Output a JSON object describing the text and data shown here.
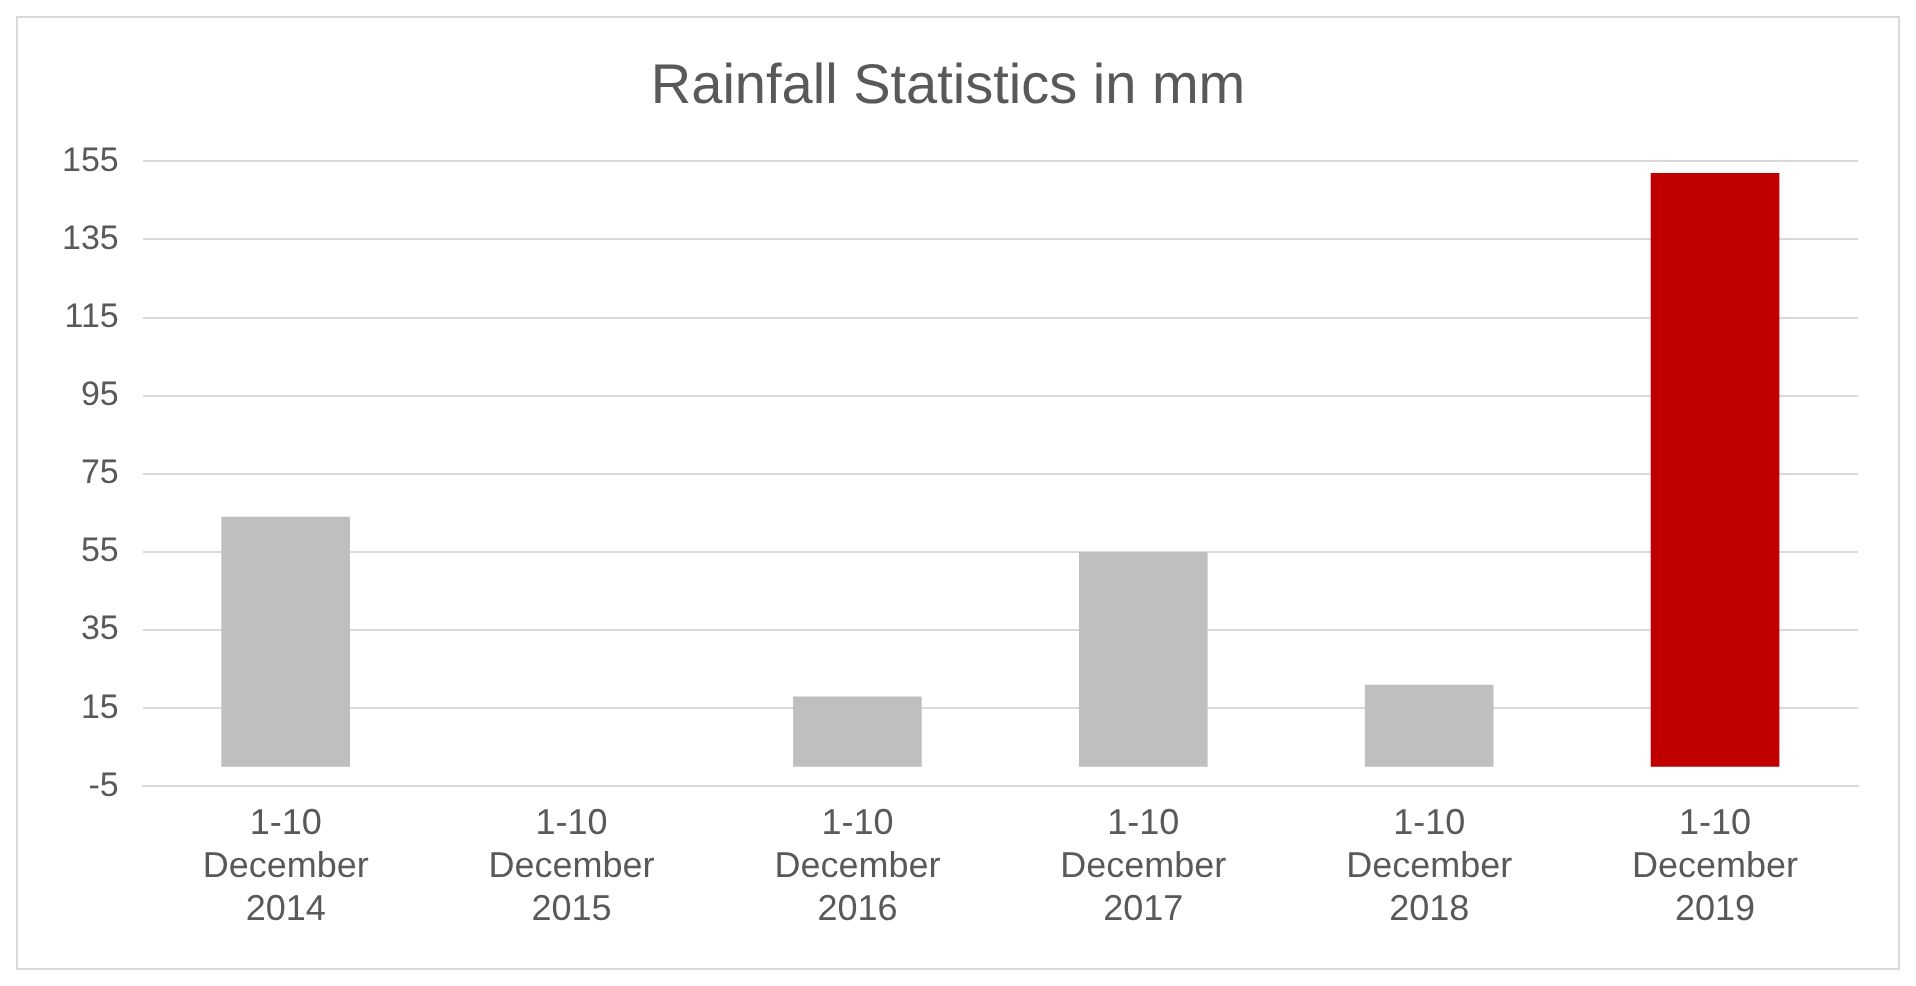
{
  "chart_data": {
    "type": "bar",
    "title": "Rainfall Statistics in mm",
    "categories": [
      "1-10 December 2014",
      "1-10 December 2015",
      "1-10 December 2016",
      "1-10 December 2017",
      "1-10 December 2018",
      "1-10 December 2019"
    ],
    "values": [
      64,
      0,
      18,
      55,
      21,
      152
    ],
    "colors": [
      "#bfbfbf",
      "#bfbfbf",
      "#bfbfbf",
      "#bfbfbf",
      "#bfbfbf",
      "#c00000"
    ],
    "ylim": [
      -5,
      155
    ],
    "yticks": [
      -5,
      15,
      35,
      55,
      75,
      95,
      115,
      135,
      155
    ],
    "grid": "y",
    "legend": false
  }
}
